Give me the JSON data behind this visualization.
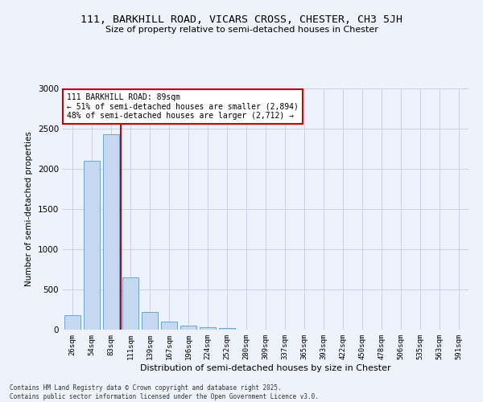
{
  "title_line1": "111, BARKHILL ROAD, VICARS CROSS, CHESTER, CH3 5JH",
  "title_line2": "Size of property relative to semi-detached houses in Chester",
  "xlabel": "Distribution of semi-detached houses by size in Chester",
  "ylabel": "Number of semi-detached properties",
  "property_label": "111 BARKHILL ROAD: 89sqm",
  "smaller_pct": 51,
  "smaller_count": 2894,
  "larger_pct": 48,
  "larger_count": 2712,
  "bin_labels": [
    "26sqm",
    "54sqm",
    "83sqm",
    "111sqm",
    "139sqm",
    "167sqm",
    "196sqm",
    "224sqm",
    "252sqm",
    "280sqm",
    "309sqm",
    "337sqm",
    "365sqm",
    "393sqm",
    "422sqm",
    "450sqm",
    "478sqm",
    "506sqm",
    "535sqm",
    "563sqm",
    "591sqm"
  ],
  "bar_values": [
    185,
    2100,
    2430,
    650,
    220,
    100,
    50,
    30,
    20,
    0,
    0,
    0,
    0,
    0,
    0,
    0,
    0,
    0,
    0,
    0,
    0
  ],
  "bar_color": "#c5d8f0",
  "bar_edge_color": "#5b9bd5",
  "vline_color": "#cc0000",
  "vline_bin_index": 2,
  "ylim_max": 3000,
  "yticks": [
    0,
    500,
    1000,
    1500,
    2000,
    2500,
    3000
  ],
  "grid_color": "#c8d4e8",
  "bg_color": "#eef2fa",
  "footer_line1": "Contains HM Land Registry data © Crown copyright and database right 2025.",
  "footer_line2": "Contains public sector information licensed under the Open Government Licence v3.0."
}
